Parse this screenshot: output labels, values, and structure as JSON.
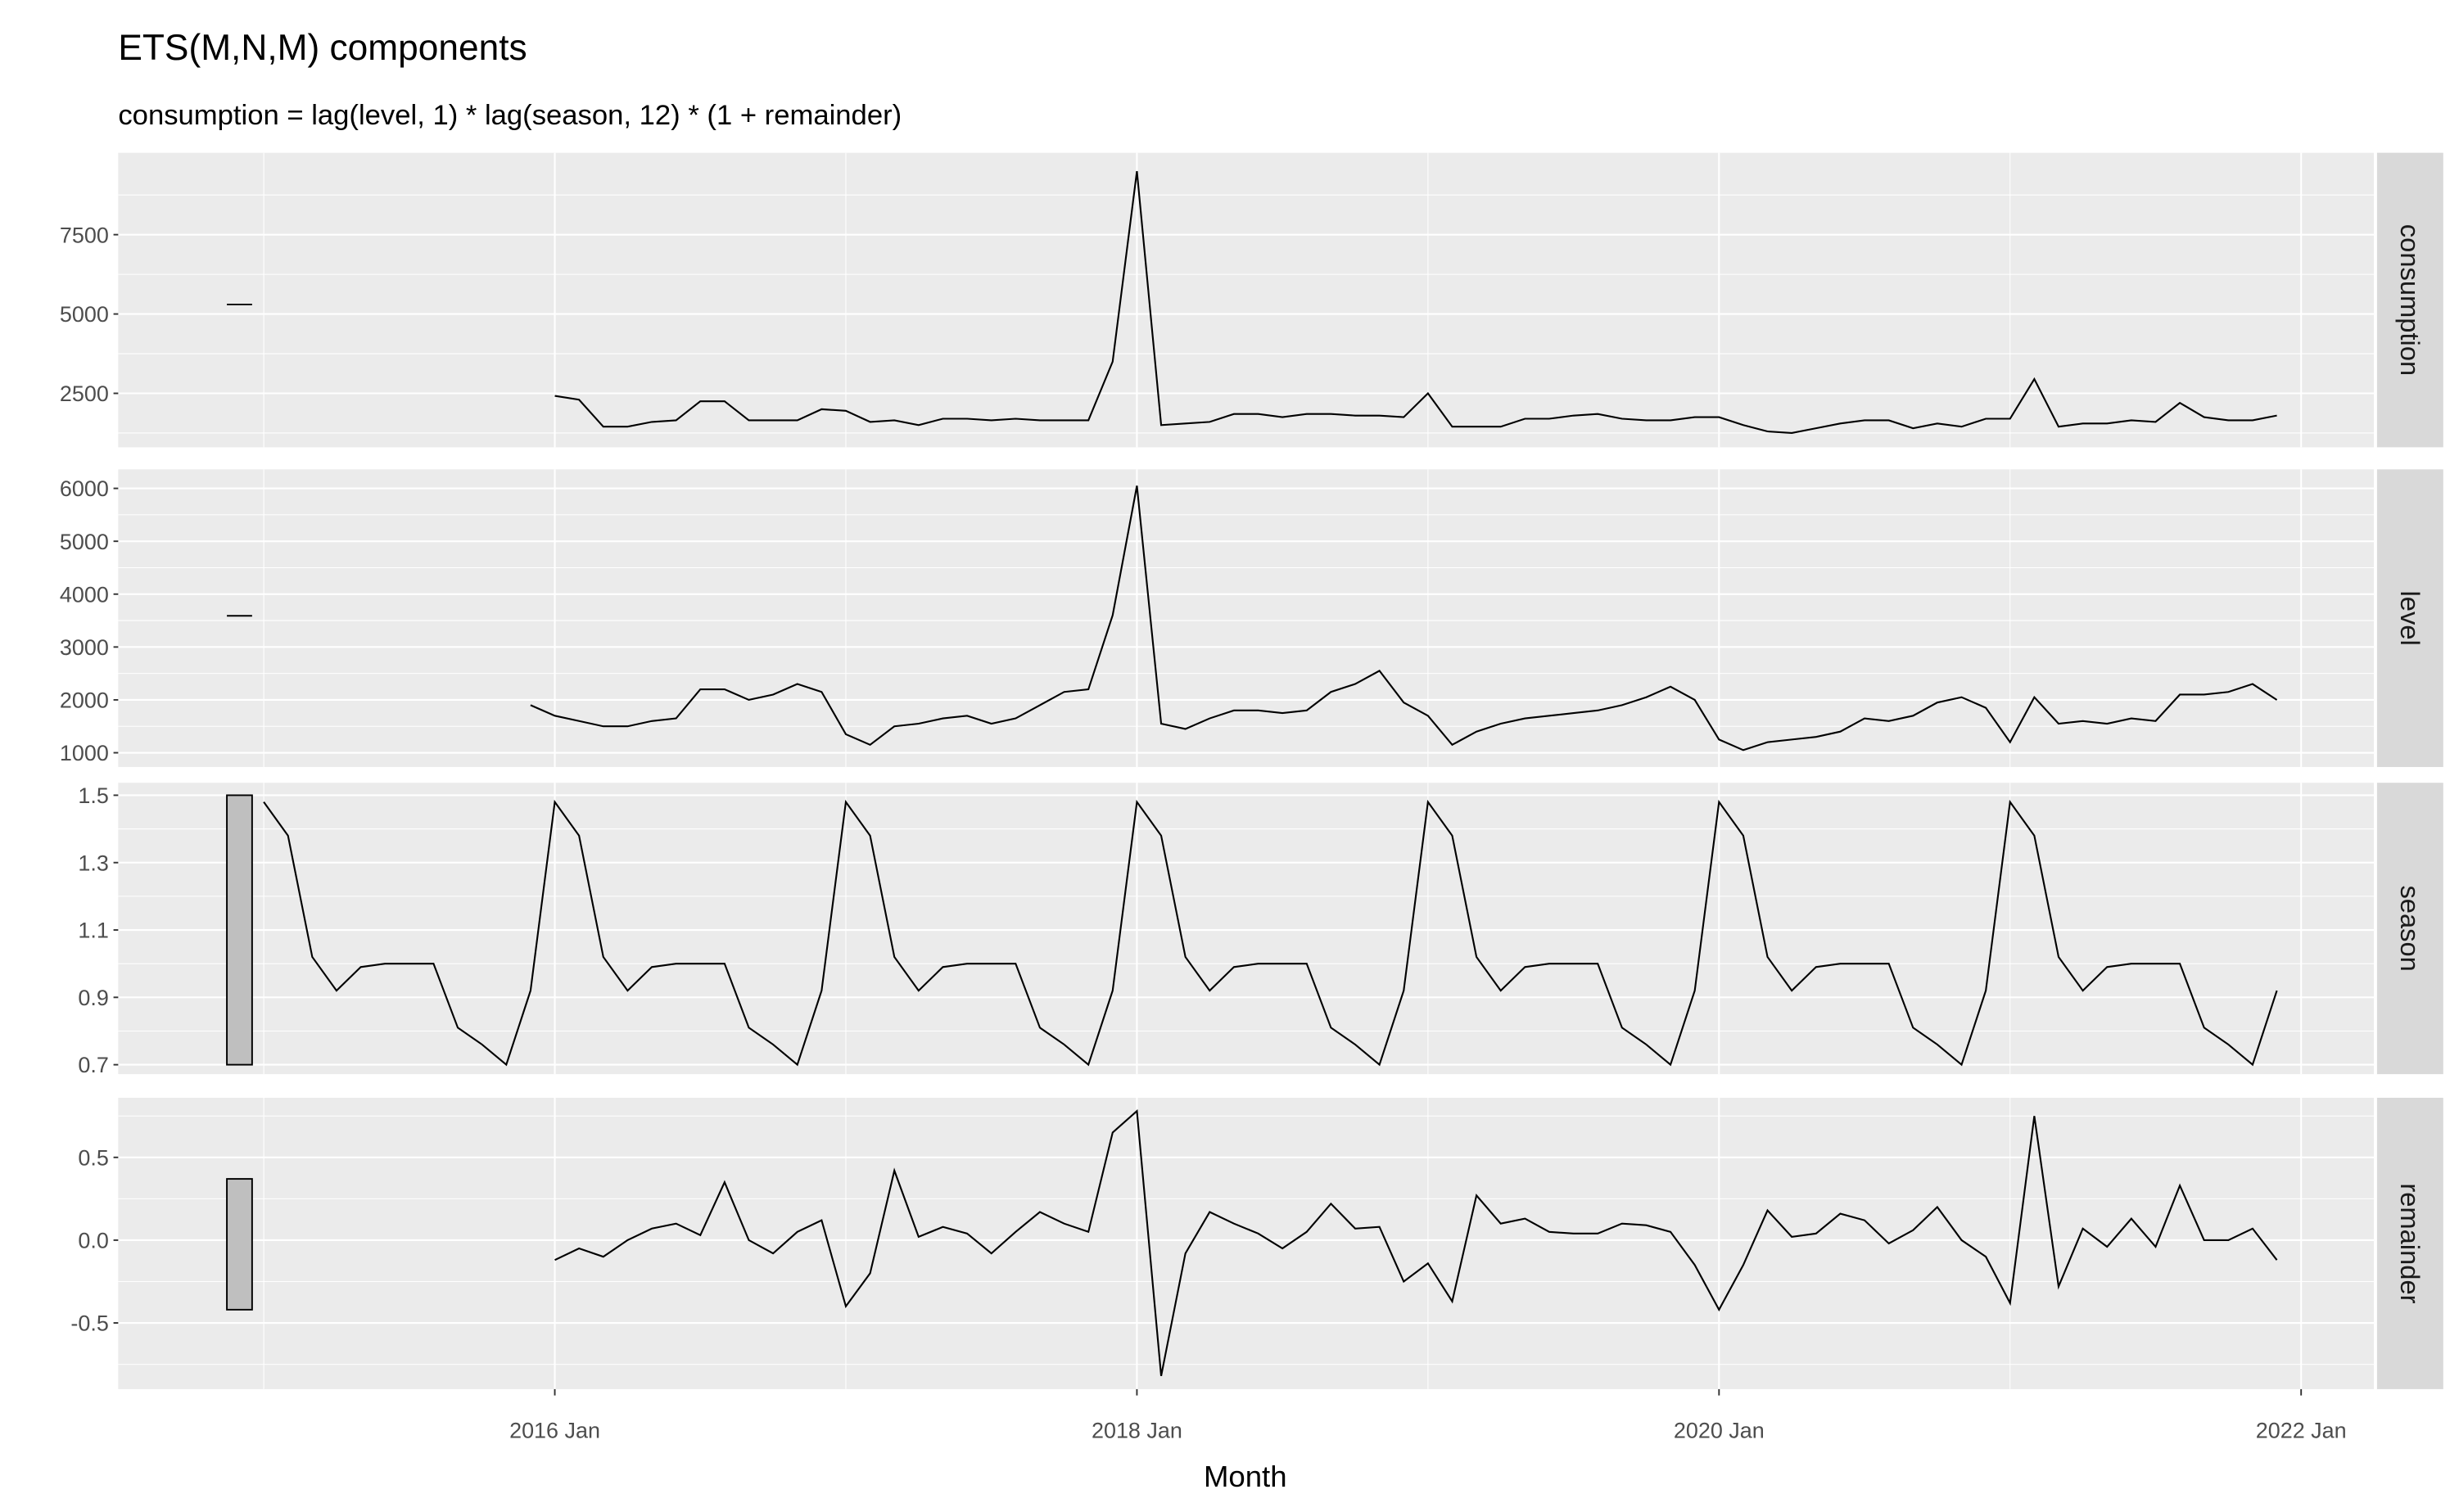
{
  "chart_data": {
    "type": "line",
    "title": "ETS(M,N,M) components",
    "subtitle": "consumption = lag(level, 1) * lag(season, 12) * (1 + remainder)",
    "x_label": "Month",
    "color": "#000000",
    "grid": true,
    "xlim": [
      "2014 Jul",
      "2022 Apr"
    ],
    "xticks": [
      "2016 Jan",
      "2018 Jan",
      "2020 Jan",
      "2022 Jan"
    ],
    "x": [
      "2015 Jan",
      "2015 Feb",
      "2015 Mar",
      "2015 Apr",
      "2015 May",
      "2015 Jun",
      "2015 Jul",
      "2015 Aug",
      "2015 Sep",
      "2015 Oct",
      "2015 Nov",
      "2015 Dec",
      "2016 Jan",
      "2016 Feb",
      "2016 Mar",
      "2016 Apr",
      "2016 May",
      "2016 Jun",
      "2016 Jul",
      "2016 Aug",
      "2016 Sep",
      "2016 Oct",
      "2016 Nov",
      "2016 Dec",
      "2017 Jan",
      "2017 Feb",
      "2017 Mar",
      "2017 Apr",
      "2017 May",
      "2017 Jun",
      "2017 Jul",
      "2017 Aug",
      "2017 Sep",
      "2017 Oct",
      "2017 Nov",
      "2017 Dec",
      "2018 Jan",
      "2018 Feb",
      "2018 Mar",
      "2018 Apr",
      "2018 May",
      "2018 Jun",
      "2018 Jul",
      "2018 Aug",
      "2018 Sep",
      "2018 Oct",
      "2018 Nov",
      "2018 Dec",
      "2019 Jan",
      "2019 Feb",
      "2019 Mar",
      "2019 Apr",
      "2019 May",
      "2019 Jun",
      "2019 Jul",
      "2019 Aug",
      "2019 Sep",
      "2019 Oct",
      "2019 Nov",
      "2019 Dec",
      "2020 Jan",
      "2020 Feb",
      "2020 Mar",
      "2020 Apr",
      "2020 May",
      "2020 Jun",
      "2020 Jul",
      "2020 Aug",
      "2020 Sep",
      "2020 Oct",
      "2020 Nov",
      "2020 Dec",
      "2021 Jan",
      "2021 Feb",
      "2021 Mar",
      "2021 Apr",
      "2021 May",
      "2021 Jun",
      "2021 Jul",
      "2021 Aug",
      "2021 Sep",
      "2021 Oct",
      "2021 Nov",
      "2021 Dec"
    ],
    "initial_x": "2014 Dec",
    "panels": [
      {
        "name": "consumption",
        "ylim": [
          800,
          10080
        ],
        "yticks": [
          2500,
          5000,
          7500
        ],
        "initial": 5300,
        "values": [
          null,
          null,
          null,
          null,
          null,
          null,
          null,
          null,
          null,
          null,
          null,
          null,
          2420,
          2300,
          1450,
          1450,
          1600,
          1650,
          2250,
          2250,
          1650,
          1650,
          1650,
          2000,
          1950,
          1600,
          1650,
          1500,
          1700,
          1700,
          1650,
          1700,
          1650,
          1650,
          1650,
          3500,
          9500,
          1500,
          1550,
          1600,
          1850,
          1850,
          1750,
          1850,
          1850,
          1800,
          1800,
          1750,
          2500,
          1450,
          1450,
          1450,
          1700,
          1700,
          1800,
          1850,
          1700,
          1650,
          1650,
          1750,
          1750,
          1500,
          1300,
          1250,
          1400,
          1550,
          1650,
          1650,
          1400,
          1550,
          1450,
          1700,
          1700,
          2950,
          1450,
          1550,
          1550,
          1650,
          1600,
          2200,
          1750,
          1650,
          1650,
          1800
        ]
      },
      {
        "name": "level",
        "ylim": [
          730,
          6360
        ],
        "yticks": [
          1000,
          2000,
          3000,
          4000,
          5000,
          6000
        ],
        "initial": 3590,
        "values": [
          null,
          null,
          null,
          null,
          null,
          null,
          null,
          null,
          null,
          null,
          null,
          1900,
          1700,
          1600,
          1500,
          1500,
          1600,
          1650,
          2200,
          2200,
          2000,
          2100,
          2300,
          2150,
          1350,
          1150,
          1500,
          1550,
          1650,
          1700,
          1550,
          1650,
          1900,
          2150,
          2200,
          3600,
          6050,
          1550,
          1450,
          1650,
          1800,
          1800,
          1750,
          1800,
          2150,
          2300,
          2550,
          1950,
          1700,
          1150,
          1400,
          1550,
          1650,
          1700,
          1750,
          1800,
          1900,
          2050,
          2250,
          2000,
          1250,
          1050,
          1200,
          1250,
          1300,
          1400,
          1650,
          1600,
          1700,
          1950,
          2050,
          1850,
          1200,
          2050,
          1550,
          1600,
          1550,
          1650,
          1600,
          2100,
          2100,
          2150,
          2300,
          2000
        ]
      },
      {
        "name": "season",
        "ylim": [
          0.672,
          1.537
        ],
        "yticks": [
          0.7,
          0.9,
          1.1,
          1.3,
          1.5
        ],
        "initial": [
          0.7,
          1.5
        ],
        "values": [
          1.48,
          1.38,
          1.02,
          0.92,
          0.99,
          1.0,
          1.0,
          1.0,
          0.81,
          0.76,
          0.7,
          0.92,
          1.48,
          1.38,
          1.02,
          0.92,
          0.99,
          1.0,
          1.0,
          1.0,
          0.81,
          0.76,
          0.7,
          0.92,
          1.48,
          1.38,
          1.02,
          0.92,
          0.99,
          1.0,
          1.0,
          1.0,
          0.81,
          0.76,
          0.7,
          0.92,
          1.48,
          1.38,
          1.02,
          0.92,
          0.99,
          1.0,
          1.0,
          1.0,
          0.81,
          0.76,
          0.7,
          0.92,
          1.48,
          1.38,
          1.02,
          0.92,
          0.99,
          1.0,
          1.0,
          1.0,
          0.81,
          0.76,
          0.7,
          0.92,
          1.48,
          1.38,
          1.02,
          0.92,
          0.99,
          1.0,
          1.0,
          1.0,
          0.81,
          0.76,
          0.7,
          0.92,
          1.48,
          1.38,
          1.02,
          0.92,
          0.99,
          1.0,
          1.0,
          1.0,
          0.81,
          0.76,
          0.7,
          0.92
        ]
      },
      {
        "name": "remainder",
        "ylim": [
          -0.9,
          0.86
        ],
        "yticks": [
          -0.5,
          {
            "value": 0,
            "label": "0.0"
          },
          0.5
        ],
        "initial": [
          -0.42,
          0.37
        ],
        "values": [
          null,
          null,
          null,
          null,
          null,
          null,
          null,
          null,
          null,
          null,
          null,
          null,
          -0.12,
          -0.05,
          -0.1,
          0.0,
          0.07,
          0.1,
          0.03,
          0.35,
          0.0,
          -0.08,
          0.05,
          0.12,
          -0.4,
          -0.2,
          0.42,
          0.02,
          0.08,
          0.04,
          -0.08,
          0.05,
          0.17,
          0.1,
          0.05,
          0.65,
          0.78,
          -0.82,
          -0.08,
          0.17,
          0.1,
          0.04,
          -0.05,
          0.05,
          0.22,
          0.07,
          0.08,
          -0.25,
          -0.14,
          -0.37,
          0.27,
          0.1,
          0.13,
          0.05,
          0.04,
          0.04,
          0.1,
          0.09,
          0.05,
          -0.15,
          -0.42,
          -0.15,
          0.18,
          0.02,
          0.04,
          0.16,
          0.12,
          -0.02,
          0.06,
          0.2,
          0.0,
          -0.1,
          -0.38,
          0.75,
          -0.28,
          0.07,
          -0.04,
          0.13,
          -0.04,
          0.33,
          0.0,
          0.0,
          0.07,
          -0.12
        ]
      }
    ]
  }
}
